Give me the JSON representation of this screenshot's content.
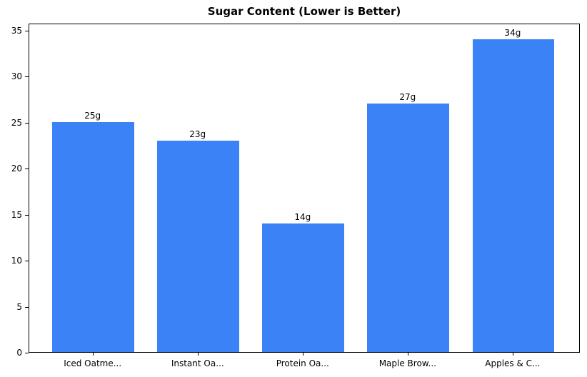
{
  "chart_data": {
    "type": "bar",
    "title": "Sugar Content (Lower is Better)",
    "categories": [
      "Iced Oatme...",
      "Instant Oa...",
      "Protein Oa...",
      "Maple Brow...",
      "Apples & C..."
    ],
    "values": [
      25,
      23,
      14,
      27,
      34
    ],
    "bar_labels": [
      "25g",
      "23g",
      "14g",
      "27g",
      "34g"
    ],
    "xlabel": "",
    "ylabel": "",
    "ylim": [
      0,
      35.78
    ],
    "yticks": [
      0,
      5,
      10,
      15,
      20,
      25,
      30,
      35
    ],
    "grid": false,
    "legend_position": "none",
    "bar_color": "#3b82f6",
    "axis_color": "#000000",
    "text_color": "#000000",
    "background": "#ffffff"
  }
}
